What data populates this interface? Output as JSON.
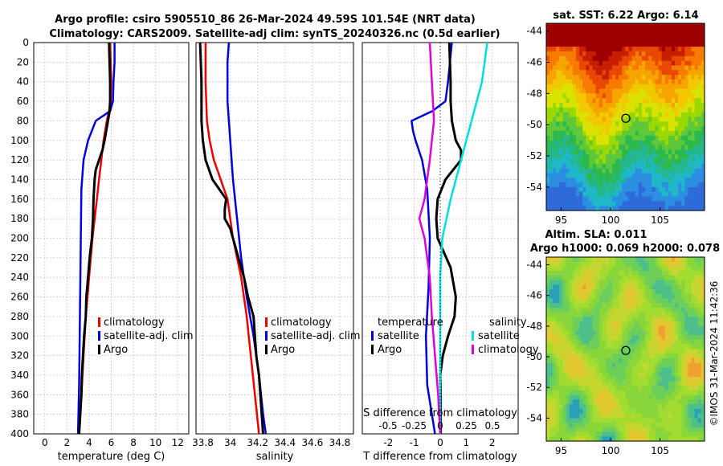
{
  "header": {
    "line1": "Argo profile: csiro 5905510_86 26-Mar-2024 49.59S 101.54E (NRT data)",
    "line2": "Climatology: CARS2009. Satellite-adj clim: synTS_20240326.nc (0.5d earlier)"
  },
  "colors": {
    "climatology": "#ee0000",
    "satellite": "#0000dd",
    "argo": "#000000",
    "sat_salinity": "#00dddd",
    "clim_salinity": "#dd00dd"
  },
  "depth_ticks": [
    "0",
    "20",
    "40",
    "60",
    "80",
    "100",
    "120",
    "140",
    "160",
    "180",
    "200",
    "220",
    "240",
    "260",
    "280",
    "300",
    "320",
    "340",
    "360",
    "380",
    "400"
  ],
  "chart_data": [
    {
      "type": "line",
      "name": "temperature",
      "xlabel": "temperature (deg C)",
      "xlim": [
        -1,
        13
      ],
      "ylim": [
        0,
        400
      ],
      "xticks": [
        "0",
        "2",
        "4",
        "6",
        "8",
        "10",
        "12"
      ],
      "legend": [
        "climatology",
        "satellite-adj. clim",
        "Argo"
      ],
      "series": [
        {
          "name": "climatology",
          "color": "#ee0000",
          "depth": [
            0,
            20,
            40,
            60,
            70,
            80,
            100,
            120,
            140,
            160,
            200,
            240,
            280,
            320,
            360,
            400
          ],
          "values": [
            5.9,
            5.95,
            6.0,
            5.95,
            5.8,
            5.6,
            5.3,
            5.1,
            4.9,
            4.7,
            4.3,
            4.0,
            3.7,
            3.5,
            3.3,
            3.1
          ]
        },
        {
          "name": "satellite-adj. clim",
          "color": "#0000dd",
          "depth": [
            0,
            20,
            40,
            60,
            70,
            80,
            100,
            120,
            150,
            200,
            250,
            300,
            350,
            400
          ],
          "values": [
            6.3,
            6.3,
            6.2,
            6.15,
            5.9,
            4.6,
            3.9,
            3.5,
            3.3,
            3.25,
            3.2,
            3.15,
            3.1,
            3.0
          ]
        },
        {
          "name": "Argo",
          "color": "#000000",
          "depth": [
            0,
            20,
            40,
            60,
            70,
            80,
            100,
            110,
            120,
            130,
            140,
            150,
            160,
            180,
            200,
            220,
            240,
            260,
            280,
            300,
            320,
            340,
            360,
            380,
            390,
            400
          ],
          "values": [
            5.8,
            5.85,
            5.9,
            5.9,
            5.85,
            5.7,
            5.4,
            5.2,
            4.9,
            4.6,
            4.5,
            4.45,
            4.4,
            4.35,
            4.25,
            4.05,
            3.9,
            3.75,
            3.7,
            3.55,
            3.45,
            3.35,
            3.3,
            3.2,
            3.15,
            3.1
          ]
        }
      ]
    },
    {
      "type": "line",
      "name": "salinity",
      "xlabel": "salinity",
      "xlim": [
        33.75,
        34.9
      ],
      "ylim": [
        0,
        400
      ],
      "xticks": [
        "33.8",
        "34",
        "34.2",
        "34.4",
        "34.6",
        "34.8"
      ],
      "legend": [
        "climatology",
        "satellite-adj. clim",
        "Argo"
      ],
      "series": [
        {
          "name": "climatology",
          "color": "#ee0000",
          "depth": [
            0,
            40,
            80,
            100,
            120,
            140,
            160,
            200,
            240,
            280,
            320,
            360,
            400
          ],
          "values": [
            33.82,
            33.82,
            33.83,
            33.85,
            33.88,
            33.93,
            33.98,
            34.02,
            34.08,
            34.12,
            34.15,
            34.18,
            34.21
          ]
        },
        {
          "name": "satellite-adj. clim",
          "color": "#0000dd",
          "depth": [
            0,
            20,
            40,
            60,
            80,
            100,
            140,
            180,
            220,
            260,
            300,
            340,
            380,
            400
          ],
          "values": [
            33.99,
            33.98,
            33.98,
            33.98,
            33.99,
            34.0,
            34.02,
            34.05,
            34.08,
            34.12,
            34.17,
            34.21,
            34.24,
            34.26
          ]
        },
        {
          "name": "Argo",
          "color": "#000000",
          "depth": [
            0,
            40,
            80,
            100,
            120,
            140,
            150,
            160,
            170,
            180,
            190,
            200,
            210,
            220,
            240,
            260,
            280,
            300,
            320,
            340,
            360,
            380,
            400
          ],
          "values": [
            33.78,
            33.79,
            33.79,
            33.8,
            33.82,
            33.87,
            33.92,
            33.97,
            33.96,
            33.96,
            34.0,
            34.02,
            34.04,
            34.06,
            34.1,
            34.13,
            34.17,
            34.18,
            34.19,
            34.21,
            34.22,
            34.23,
            34.24
          ]
        }
      ]
    },
    {
      "type": "line",
      "name": "difference",
      "xlabel": "T difference from climatology",
      "top_xlabel": "S difference from climatology",
      "xlim": [
        -3,
        3
      ],
      "ylim": [
        0,
        400
      ],
      "xticks": [
        "-2",
        "-1",
        "0",
        "1",
        "2"
      ],
      "top_xticks": [
        "-0.5",
        "-0.25",
        "0",
        "0.25",
        "0.5"
      ],
      "legend_left_title": "temperature",
      "legend_right_title": "salinity",
      "legend_left": [
        "satellite",
        "Argo"
      ],
      "legend_right": [
        "satellite",
        "climatology"
      ],
      "series": [
        {
          "name": "temperature satellite",
          "color": "#0000dd",
          "depth": [
            0,
            40,
            60,
            70,
            80,
            90,
            100,
            120,
            150,
            200,
            250,
            300,
            350,
            400
          ],
          "values": [
            0.45,
            0.3,
            0.2,
            -0.3,
            -1.1,
            -1.05,
            -0.95,
            -0.7,
            -0.5,
            -0.4,
            -0.45,
            -0.55,
            -0.5,
            -0.2
          ]
        },
        {
          "name": "temperature Argo",
          "color": "#000000",
          "depth": [
            0,
            40,
            60,
            80,
            100,
            110,
            120,
            130,
            140,
            160,
            180,
            200,
            230,
            260,
            280,
            300,
            320,
            340,
            360,
            380,
            400
          ],
          "values": [
            0.35,
            0.4,
            0.4,
            0.45,
            0.6,
            0.8,
            0.8,
            0.5,
            0.2,
            -0.1,
            -0.15,
            -0.1,
            0.4,
            0.6,
            0.55,
            0.3,
            0.1,
            0.0,
            0.02,
            0.02,
            0.02
          ]
        },
        {
          "name": "salinity satellite",
          "color": "#00dddd",
          "depth": [
            0,
            40,
            80,
            120,
            160,
            200,
            240,
            280,
            320,
            360,
            400
          ],
          "values": [
            0.45,
            0.4,
            0.3,
            0.2,
            0.1,
            0.02,
            0.0,
            0.0,
            0.0,
            0.0,
            0.0
          ]
        },
        {
          "name": "salinity climatology",
          "color": "#dd00dd",
          "depth": [
            0,
            40,
            80,
            120,
            160,
            180,
            200,
            240,
            280,
            320,
            360,
            400
          ],
          "values": [
            -0.1,
            -0.08,
            -0.06,
            -0.1,
            -0.15,
            -0.2,
            -0.15,
            -0.1,
            -0.08,
            -0.05,
            -0.02,
            0.0
          ]
        }
      ]
    },
    {
      "type": "heatmap",
      "name": "sst",
      "title": "sat. SST: 6.22 Argo: 6.14",
      "xticks": [
        "95",
        "100",
        "105"
      ],
      "yticks": [
        "-44",
        "-46",
        "-48",
        "-50",
        "-52",
        "-54"
      ],
      "xlim": [
        93.5,
        109.5
      ],
      "ylim": [
        -55.5,
        -43.5
      ],
      "marker": [
        101.54,
        -49.59
      ]
    },
    {
      "type": "heatmap",
      "name": "sla",
      "title_line1": "Altim. SLA: 0.011",
      "title_line2": "Argo h1000: 0.069 h2000: 0.078",
      "xticks": [
        "95",
        "100",
        "105"
      ],
      "yticks": [
        "-44",
        "-46",
        "-48",
        "-50",
        "-52",
        "-54"
      ],
      "xlim": [
        93.5,
        109.5
      ],
      "ylim": [
        -55.5,
        -43.5
      ],
      "marker": [
        101.54,
        -49.59
      ]
    }
  ],
  "stamp": "©IMOS 31-Mar-2024 11:42:36"
}
